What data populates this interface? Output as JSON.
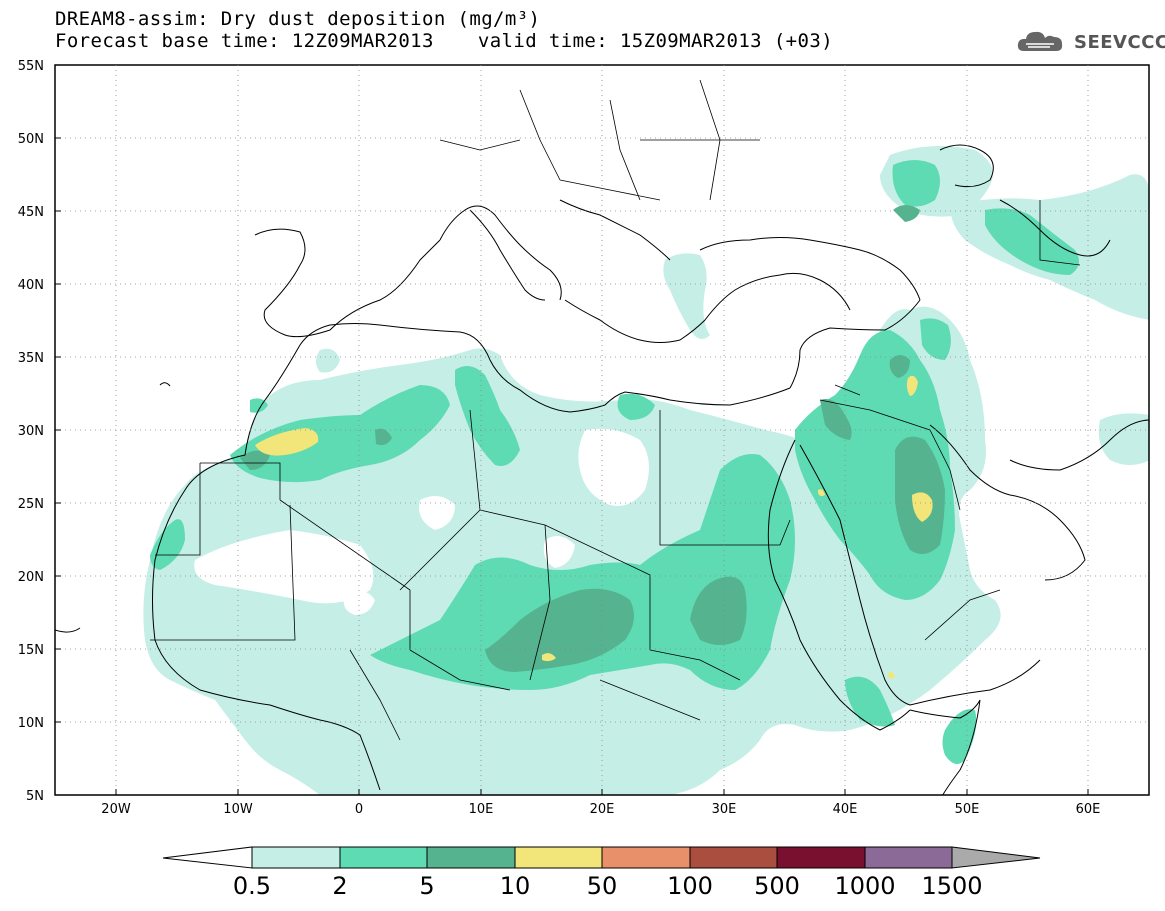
{
  "header": {
    "title_line1": "DREAM8-assim: Dry dust deposition (mg/m³)",
    "base_time": "Forecast base time: 12Z09MAR2013",
    "valid_time": "valid time: 15Z09MAR2013 (+03)"
  },
  "logo": {
    "text": "SEEVCCC",
    "icon": "cloud-icon"
  },
  "map": {
    "projection": "cylindrical",
    "lon_range": [
      -25,
      65
    ],
    "lat_range": [
      5,
      55
    ],
    "lat_labels": [
      "5N",
      "10N",
      "15N",
      "20N",
      "25N",
      "30N",
      "35N",
      "40N",
      "45N",
      "50N",
      "55N"
    ],
    "lon_labels": [
      "20W",
      "10W",
      "0",
      "10E",
      "20E",
      "30E",
      "40E",
      "50E",
      "60E"
    ]
  },
  "legend": {
    "levels": [
      "0.5",
      "2",
      "5",
      "10",
      "50",
      "100",
      "500",
      "1000",
      "1500"
    ],
    "colors": [
      "#c4eee6",
      "#5edbb3",
      "#55b48f",
      "#f2e57a",
      "#e8906a",
      "#aa4e3f",
      "#7a1030",
      "#8c6a98",
      "#aaaaaa"
    ],
    "low_end_color": "#ffffff",
    "high_end_color": "#aaaaaa"
  },
  "colors": {
    "ocean": "#ffffff",
    "land": "#ffffff",
    "borders": "#000000"
  }
}
